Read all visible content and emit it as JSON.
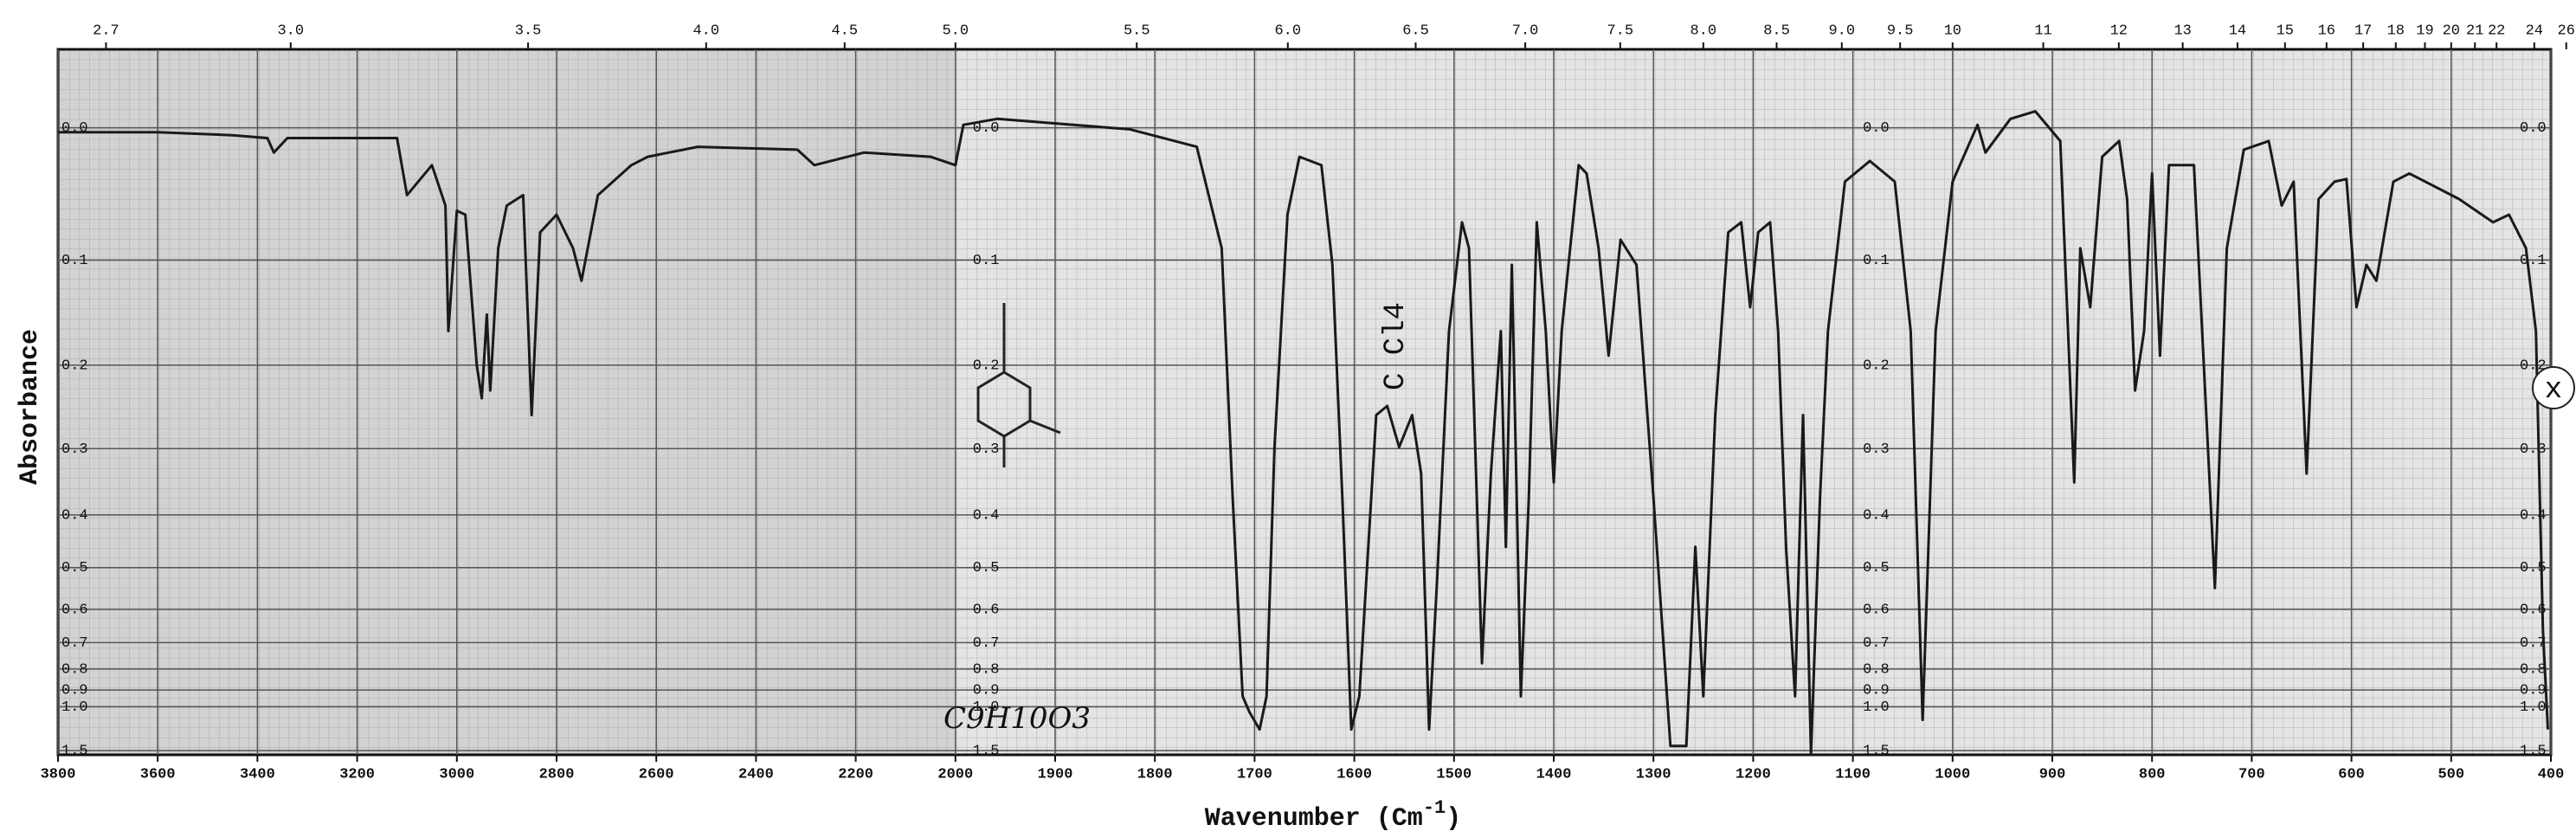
{
  "chart_data": {
    "type": "line",
    "ylabel": "Absorbance",
    "xlabel": "Wavenumber (Cm",
    "xlabel_superscript": "-1",
    "xlabel_end": ")",
    "annotations": [
      "C Cl4",
      "C9H10O3",
      "x"
    ],
    "color": "#1a1a1a",
    "grid": true,
    "y_scale": "transmittance",
    "x_break": 2000,
    "x_break_ratio": 2,
    "xlim": [
      3800,
      400
    ],
    "ylim": [
      -0.05,
      1.6
    ],
    "xticks": [
      3800,
      3600,
      3400,
      3200,
      3000,
      2800,
      2600,
      2400,
      2200,
      2000,
      1900,
      1800,
      1700,
      1600,
      1500,
      1400,
      1300,
      1200,
      1100,
      1000,
      900,
      800,
      700,
      600,
      500,
      400
    ],
    "yticks": [
      {
        "value": 0,
        "label": "0.0"
      },
      0.1,
      0.2,
      0.3,
      0.4,
      0.5,
      0.6,
      0.7,
      0.8,
      0.9,
      {
        "value": 1,
        "label": "1.0"
      },
      1.5
    ],
    "x2ticks": [
      2.7,
      {
        "value": 3,
        "label": "3.0"
      },
      3.5,
      {
        "value": 4,
        "label": "4.0"
      },
      4.5,
      {
        "value": 5,
        "label": "5.0"
      },
      5.5,
      {
        "value": 6,
        "label": "6.0"
      },
      6.5,
      {
        "value": 7,
        "label": "7.0"
      },
      7.5,
      {
        "value": 8,
        "label": "8.0"
      },
      8.5,
      {
        "value": 9,
        "label": "9.0"
      },
      9.5,
      10,
      11,
      12,
      13,
      14,
      15,
      16,
      17,
      18,
      19,
      20,
      21,
      22,
      24,
      26
    ],
    "x": [
      3800,
      3600,
      3450,
      3380,
      3367,
      3340,
      3120,
      3100,
      3050,
      3023,
      3017,
      3000,
      2983,
      2960,
      2950,
      2940,
      2933,
      2917,
      2900,
      2867,
      2850,
      2833,
      2800,
      2767,
      2750,
      2717,
      2650,
      2617,
      2517,
      2317,
      2283,
      2183,
      2050,
      2000,
      1992,
      1958,
      1825,
      1758,
      1733,
      1722,
      1712,
      1705,
      1695,
      1688,
      1680,
      1667,
      1655,
      1633,
      1622,
      1612,
      1603,
      1595,
      1588,
      1578,
      1567,
      1555,
      1542,
      1533,
      1525,
      1517,
      1505,
      1492,
      1485,
      1472,
      1463,
      1453,
      1448,
      1442,
      1433,
      1425,
      1417,
      1408,
      1400,
      1392,
      1375,
      1367,
      1355,
      1345,
      1333,
      1317,
      1300,
      1283,
      1267,
      1258,
      1250,
      1238,
      1225,
      1212,
      1203,
      1195,
      1183,
      1175,
      1167,
      1158,
      1150,
      1142,
      1133,
      1125,
      1108,
      1083,
      1058,
      1042,
      1030,
      1017,
      1000,
      975,
      967,
      942,
      917,
      892,
      878,
      872,
      862,
      850,
      833,
      825,
      817,
      808,
      800,
      792,
      783,
      758,
      737,
      725,
      708,
      683,
      670,
      658,
      645,
      633,
      617,
      605,
      595,
      585,
      575,
      558,
      542,
      492,
      458,
      442,
      425,
      415,
      408,
      403
    ],
    "values": [
      0.003,
      0.003,
      0.005,
      0.007,
      0.017,
      0.007,
      0.007,
      0.048,
      0.026,
      0.056,
      0.165,
      0.06,
      0.063,
      0.2,
      0.237,
      0.149,
      0.228,
      0.09,
      0.056,
      0.048,
      0.257,
      0.077,
      0.063,
      0.09,
      0.118,
      0.048,
      0.026,
      0.02,
      0.013,
      0.015,
      0.026,
      0.017,
      0.02,
      0.026,
      -0.002,
      -0.006,
      0.001,
      0.013,
      0.09,
      0.372,
      0.935,
      1.04,
      1.19,
      0.935,
      0.298,
      0.063,
      0.02,
      0.026,
      0.104,
      0.372,
      1.19,
      0.935,
      0.529,
      0.257,
      0.246,
      0.298,
      0.257,
      0.335,
      1.19,
      0.529,
      0.165,
      0.069,
      0.09,
      0.776,
      0.335,
      0.165,
      0.458,
      0.104,
      0.935,
      0.372,
      0.069,
      0.165,
      0.348,
      0.165,
      0.026,
      0.032,
      0.09,
      0.19,
      0.083,
      0.104,
      0.372,
      1.41,
      1.41,
      0.458,
      0.935,
      0.257,
      0.077,
      0.069,
      0.142,
      0.077,
      0.069,
      0.165,
      0.458,
      0.935,
      0.257,
      1.59,
      0.372,
      0.165,
      0.038,
      0.023,
      0.038,
      0.165,
      1.1,
      0.165,
      0.038,
      -0.002,
      0.017,
      -0.006,
      -0.011,
      0.009,
      0.348,
      0.09,
      0.142,
      0.02,
      0.009,
      0.051,
      0.228,
      0.165,
      0.032,
      0.19,
      0.026,
      0.026,
      0.546,
      0.09,
      0.015,
      0.009,
      0.056,
      0.038,
      0.335,
      0.051,
      0.038,
      0.036,
      0.142,
      0.104,
      0.118,
      0.038,
      0.032,
      0.051,
      0.069,
      0.063,
      0.09,
      0.165,
      0.66,
      1.19
    ]
  }
}
